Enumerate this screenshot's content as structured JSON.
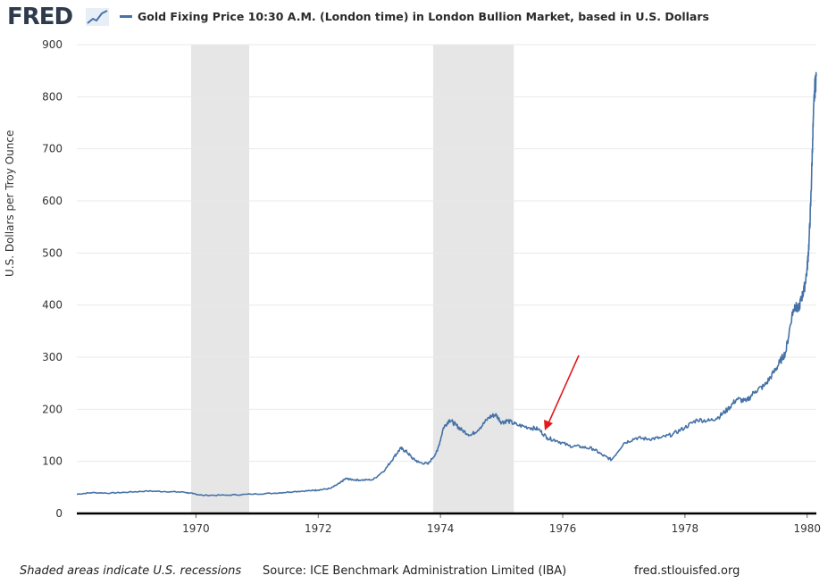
{
  "brand": {
    "name": "FRED"
  },
  "chart_data": {
    "type": "line",
    "title": "Gold Fixing Price 10:30 A.M. (London time) in London Bullion Market, based in U.S. Dollars",
    "ylabel": "U.S. Dollars per Troy Ounce",
    "xlabel": "",
    "ylim": [
      0,
      900
    ],
    "xlim": [
      1968.05,
      1980.15
    ],
    "yticks": [
      0,
      100,
      200,
      300,
      400,
      500,
      600,
      700,
      800,
      900
    ],
    "xticks": [
      1970,
      1972,
      1974,
      1976,
      1978,
      1980
    ],
    "grid": true,
    "line_color": "#4572a7",
    "recessions": [
      [
        1969.92,
        1970.87
      ],
      [
        1973.88,
        1975.2
      ]
    ],
    "series": [
      {
        "name": "Gold Fixing Price 10:30 A.M. (London time) in London Bullion Market, based in U.S. Dollars",
        "x": [
          1968.05,
          1968.3,
          1968.6,
          1968.9,
          1969.2,
          1969.5,
          1969.8,
          1969.95,
          1970.1,
          1970.5,
          1970.9,
          1971.3,
          1971.6,
          1971.9,
          1972.0,
          1972.2,
          1972.35,
          1972.45,
          1972.55,
          1972.7,
          1972.9,
          1973.1,
          1973.25,
          1973.35,
          1973.45,
          1973.55,
          1973.65,
          1973.8,
          1973.95,
          1974.05,
          1974.15,
          1974.25,
          1974.35,
          1974.5,
          1974.65,
          1974.8,
          1974.9,
          1975.0,
          1975.1,
          1975.25,
          1975.45,
          1975.6,
          1975.75,
          1975.9,
          1976.1,
          1976.3,
          1976.5,
          1976.65,
          1976.8,
          1977.0,
          1977.2,
          1977.4,
          1977.6,
          1977.8,
          1978.0,
          1978.2,
          1978.4,
          1978.55,
          1978.7,
          1978.85,
          1979.0,
          1979.15,
          1979.3,
          1979.45,
          1979.55,
          1979.65,
          1979.75,
          1979.8,
          1979.85,
          1979.9,
          1979.95,
          1980.0,
          1980.03,
          1980.06,
          1980.09,
          1980.12,
          1980.15
        ],
        "values": [
          37,
          40,
          39,
          41,
          43,
          42,
          41,
          38,
          35,
          35,
          37,
          39,
          42,
          44,
          45,
          48,
          58,
          67,
          65,
          64,
          65,
          85,
          110,
          125,
          118,
          105,
          98,
          95,
          120,
          165,
          180,
          170,
          160,
          150,
          165,
          185,
          190,
          175,
          178,
          170,
          165,
          162,
          145,
          140,
          130,
          128,
          124,
          112,
          103,
          135,
          145,
          143,
          145,
          152,
          165,
          180,
          178,
          185,
          200,
          220,
          215,
          235,
          245,
          270,
          290,
          310,
          380,
          400,
          390,
          410,
          430,
          470,
          520,
          600,
          720,
          810,
          840
        ]
      }
    ]
  },
  "footer": {
    "note": "Shaded areas indicate U.S. recessions",
    "source": "Source: ICE Benchmark Administration Limited (IBA)",
    "site": "fred.stlouisfed.org"
  }
}
